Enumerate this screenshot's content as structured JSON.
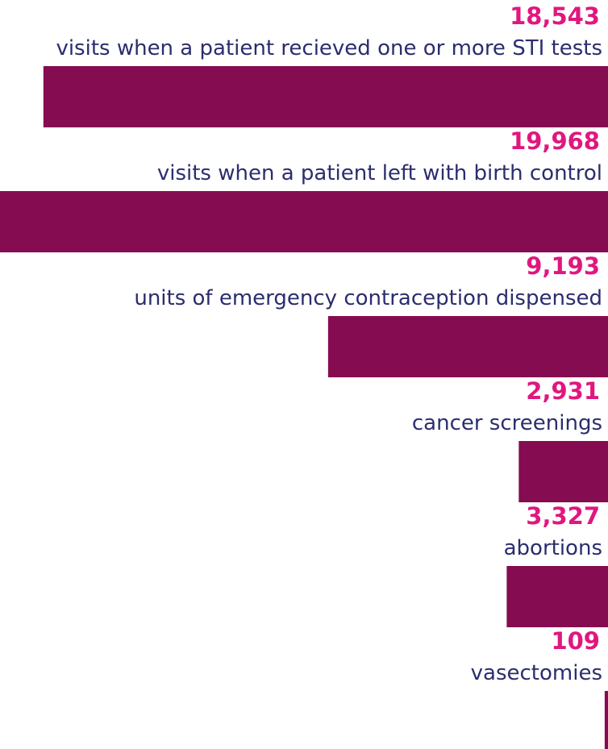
{
  "chart_data": {
    "type": "bar",
    "orientation": "horizontal",
    "categories": [
      "visits when a patient recieved one or more STI tests",
      "visits when a patient left with birth control",
      "units of emergency contraception dispensed",
      "cancer screenings",
      "abortions",
      "vasectomies"
    ],
    "values": [
      18543,
      19968,
      9193,
      2931,
      3327,
      109
    ],
    "value_labels": [
      "18,543",
      "19,968",
      "9,193",
      "2,931",
      "3,327",
      "109"
    ],
    "color": "#850c50",
    "value_label_color": "#e0177f",
    "category_color": "#2b2d6e",
    "xlim": [
      0,
      19968
    ]
  }
}
